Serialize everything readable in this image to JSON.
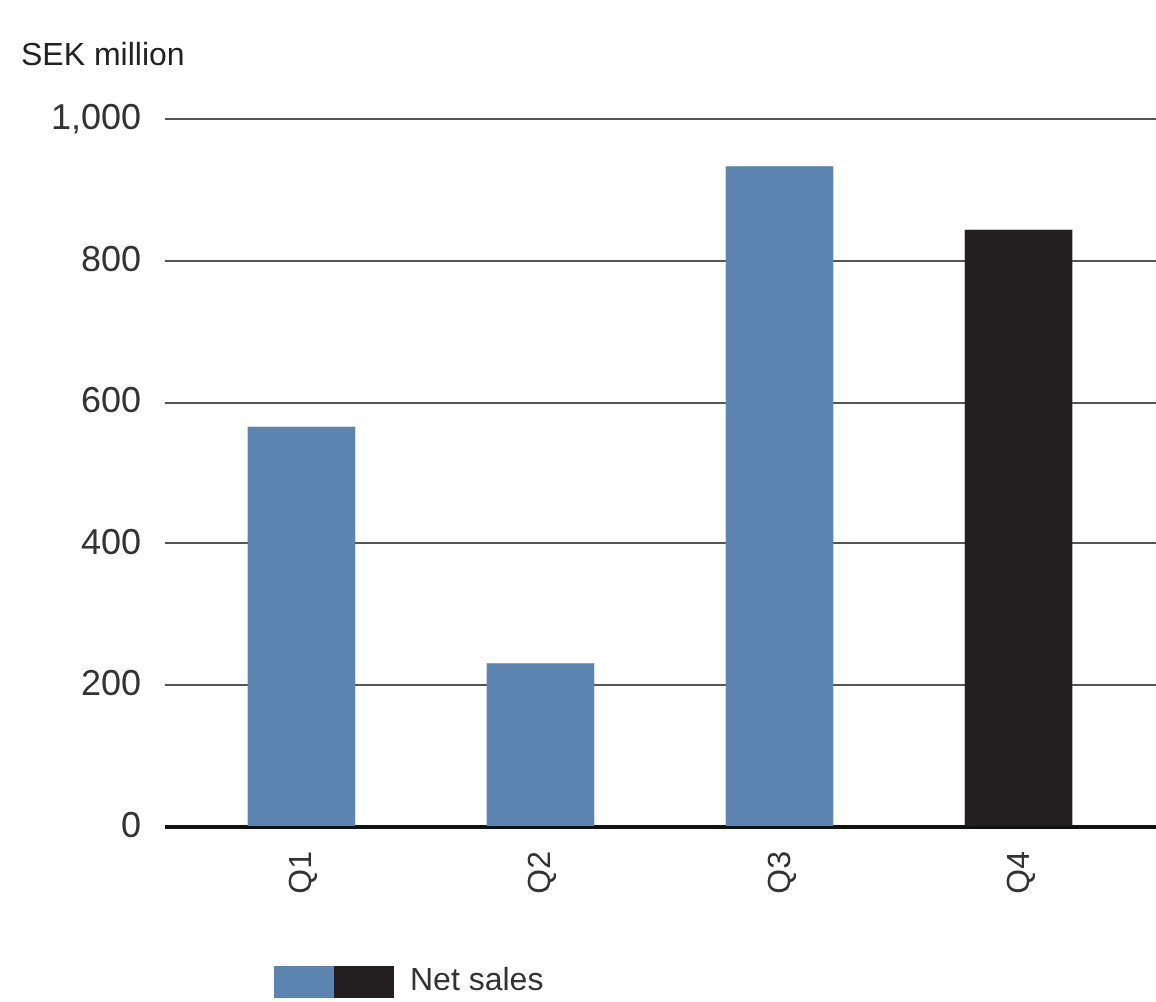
{
  "chart_data": {
    "type": "bar",
    "ylabel": "SEK million",
    "categories": [
      "Q1",
      "Q2",
      "Q3",
      "Q4"
    ],
    "series": [
      {
        "name": "Net sales",
        "colors": [
          "#5b84b0",
          "#5b84b0",
          "#5b84b0",
          "#231f20"
        ],
        "values": [
          564,
          230,
          932,
          842
        ]
      }
    ],
    "ylim": [
      0,
      1000
    ],
    "yticks": [
      0,
      200,
      400,
      600,
      800,
      {
        "value": 1000,
        "label": "1,000"
      }
    ],
    "grid": "y",
    "legend": "bottom"
  }
}
